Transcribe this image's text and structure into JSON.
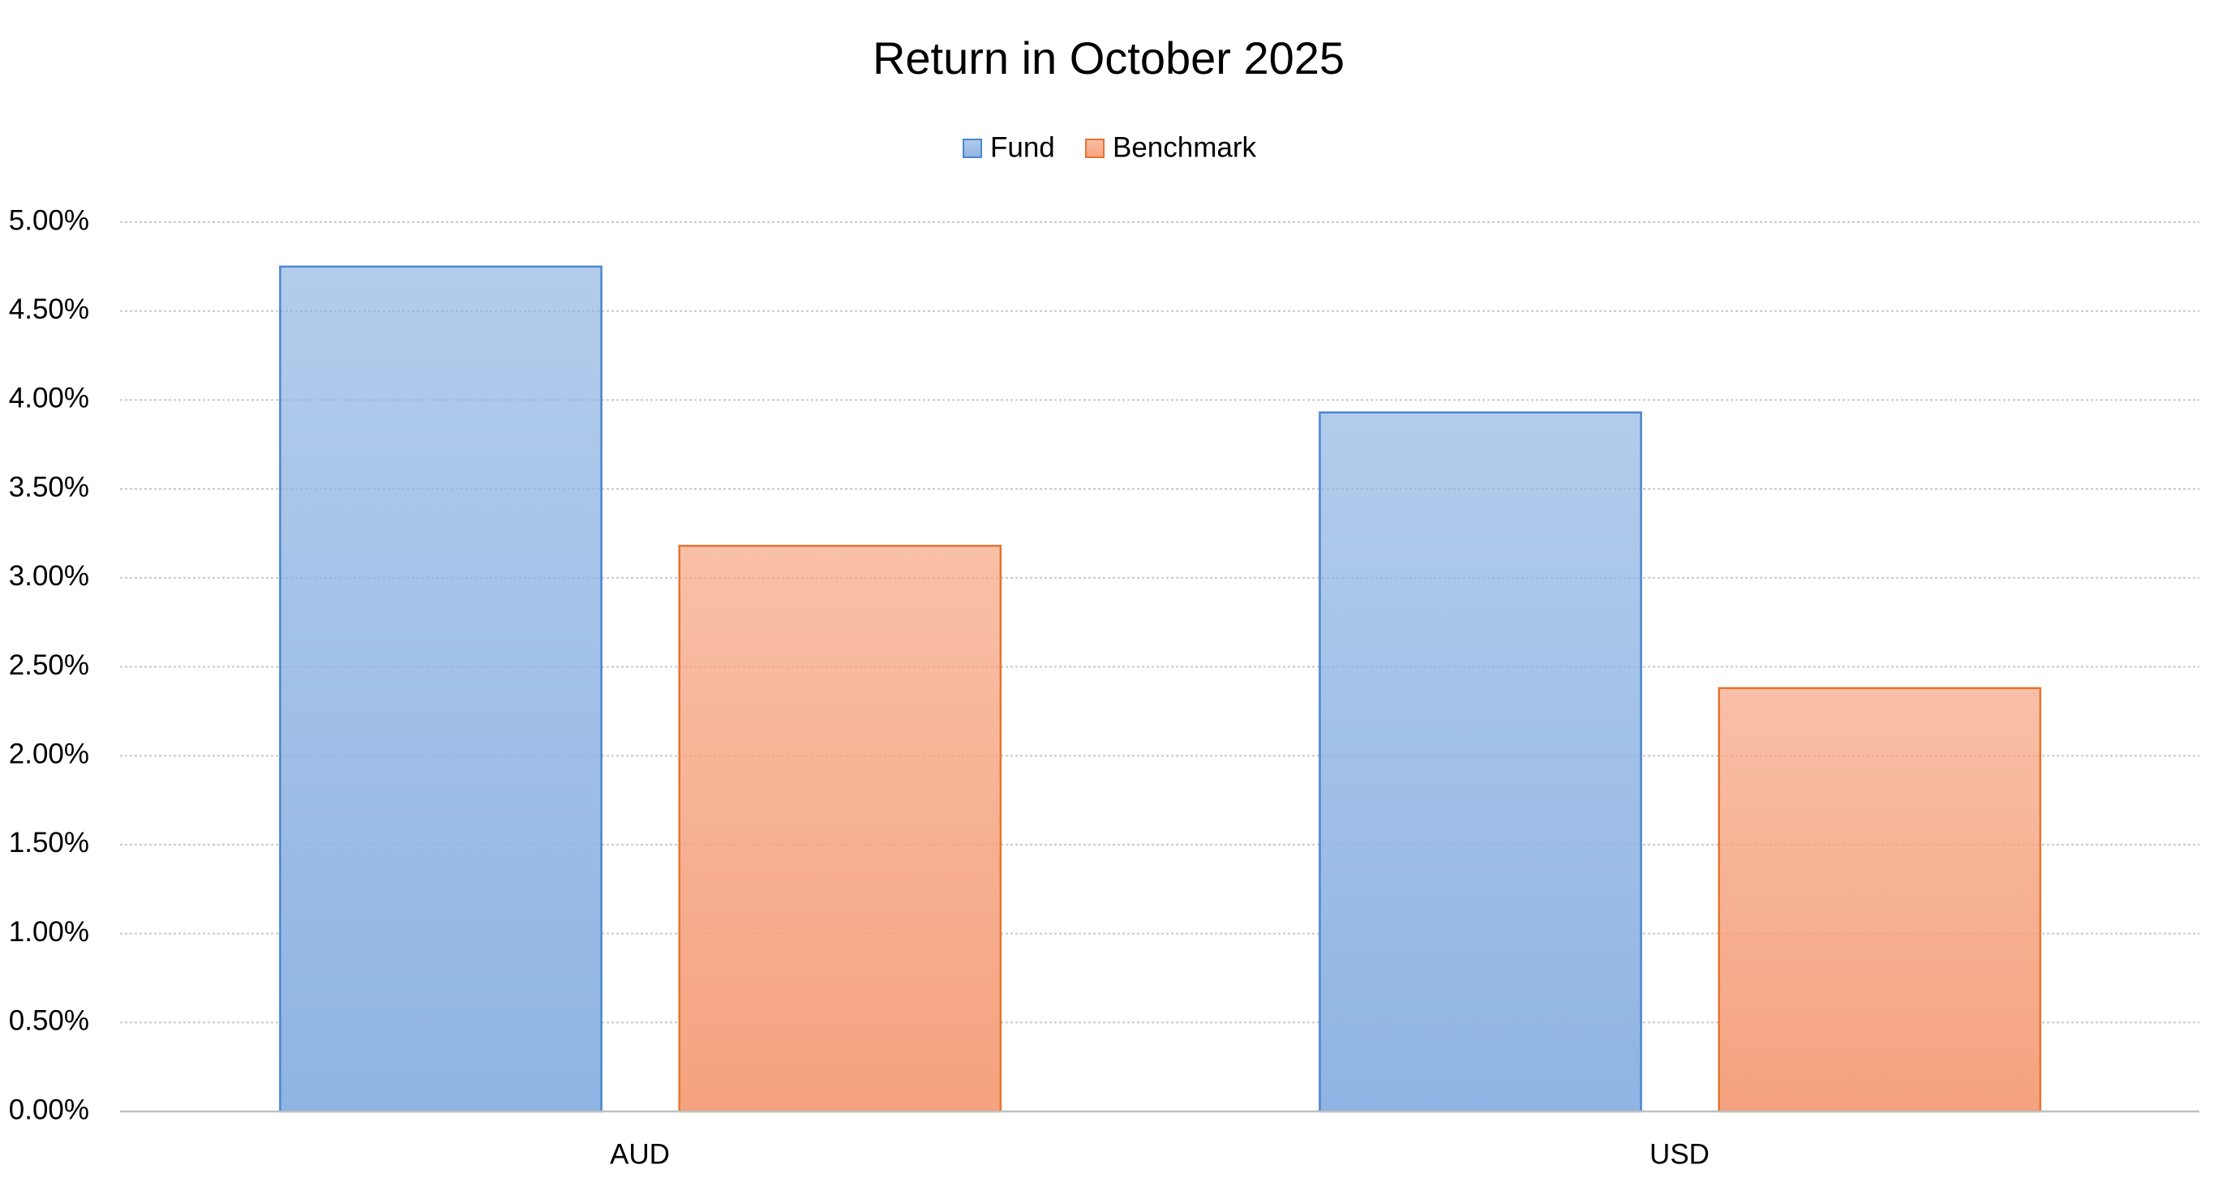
{
  "chart_data": {
    "type": "bar",
    "title": "Return in October 2025",
    "categories": [
      "AUD",
      "USD"
    ],
    "series": [
      {
        "name": "Fund",
        "color": "#8fb4e3",
        "border_color": "#4a86cf",
        "values": [
          4.75,
          3.93
        ]
      },
      {
        "name": "Benchmark",
        "color": "#f5a27e",
        "border_color": "#e6742f",
        "values": [
          3.18,
          2.38
        ]
      }
    ],
    "ylim": [
      0,
      5
    ],
    "yticks": [
      {
        "value": 0,
        "label": "0.00%"
      },
      {
        "value": 0.5,
        "label": "0.50%"
      },
      {
        "value": 1,
        "label": "1.00%"
      },
      {
        "value": 1.5,
        "label": "1.50%"
      },
      {
        "value": 2,
        "label": "2.00%"
      },
      {
        "value": 2.5,
        "label": "2.50%"
      },
      {
        "value": 3,
        "label": "3.00%"
      },
      {
        "value": 3.5,
        "label": "3.50%"
      },
      {
        "value": 4,
        "label": "4.00%"
      },
      {
        "value": 4.5,
        "label": "4.50%"
      },
      {
        "value": 5,
        "label": "5.00%"
      }
    ],
    "grid": true,
    "legend": "top"
  }
}
